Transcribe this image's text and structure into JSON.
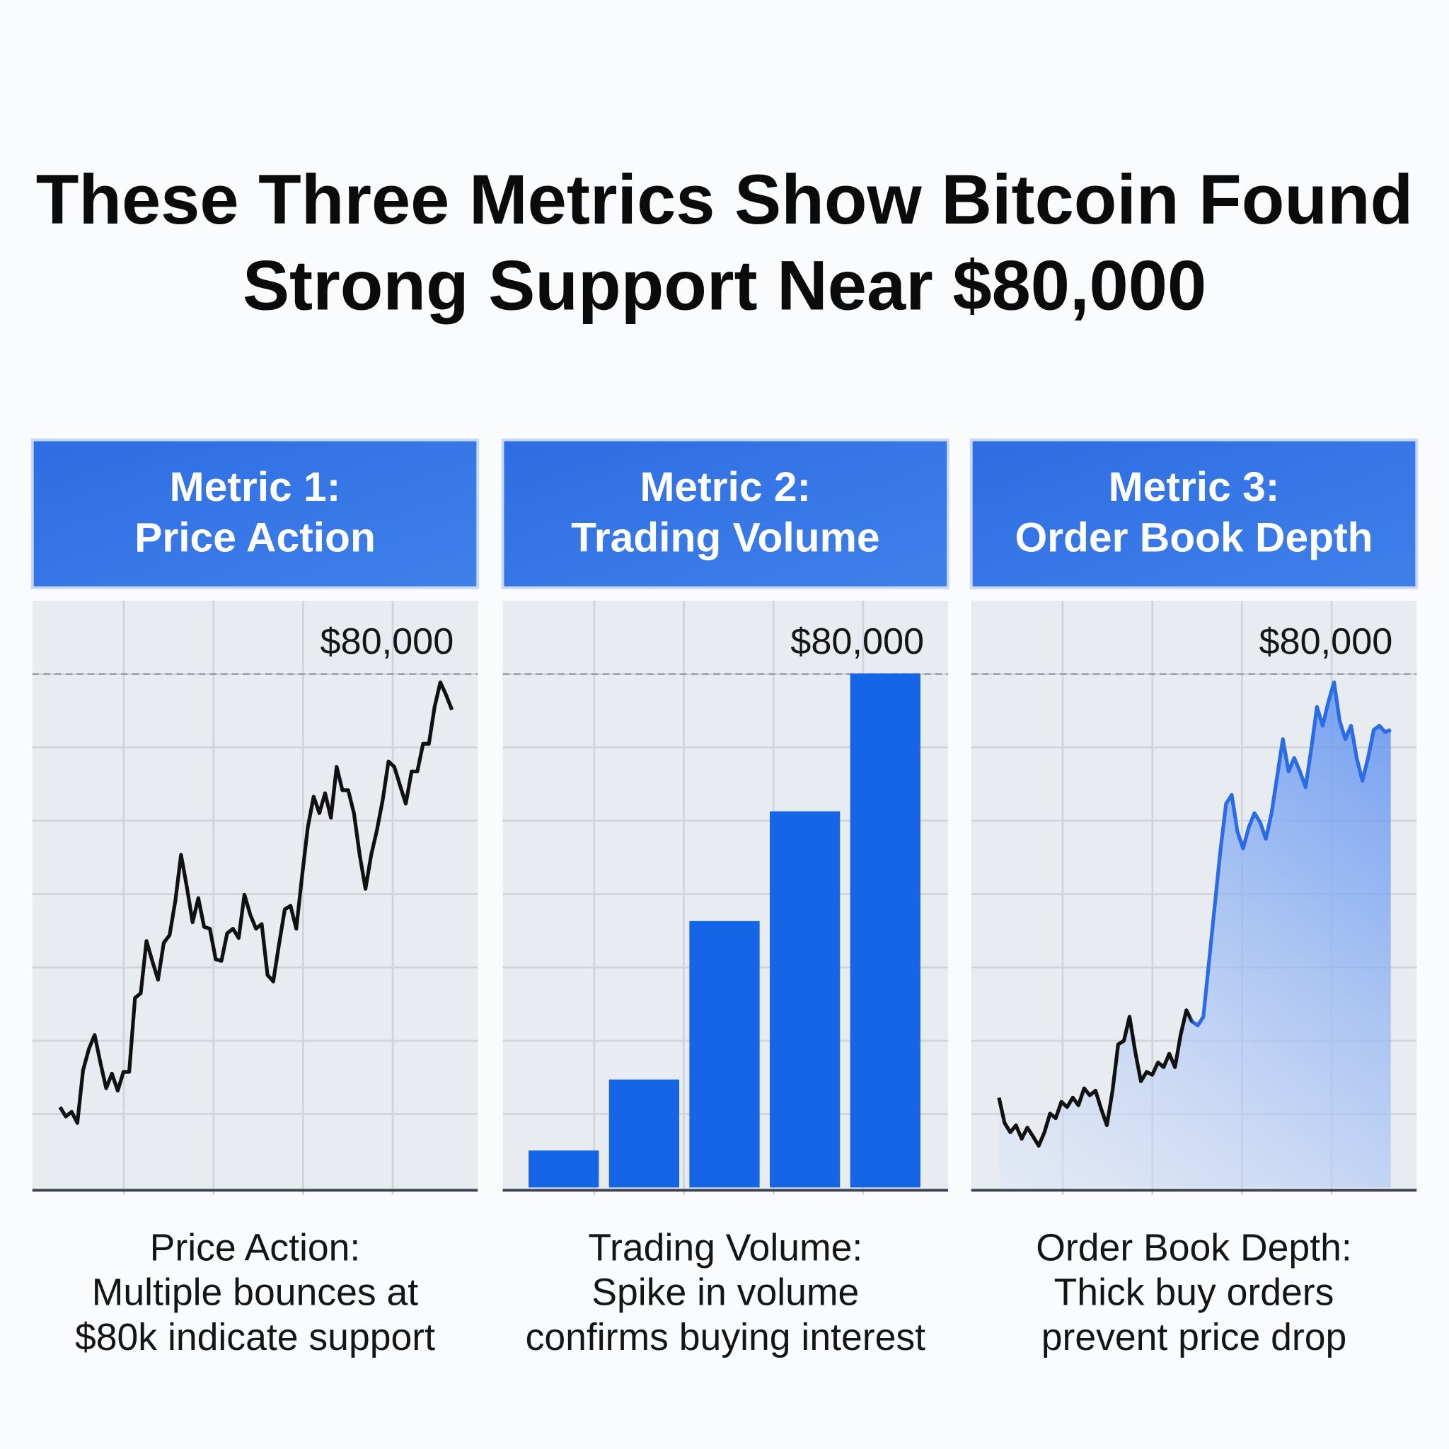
{
  "header": {
    "title": [
      "These Three Metrics Show Bitcoin Found",
      "Strong Support Near $80,000"
    ]
  },
  "chart_data": [
    {
      "type": "line",
      "title": "Metric 1:",
      "subtitle": "Price Action",
      "color": "#111111",
      "ylim": [
        0,
        100
      ],
      "ygrid": [
        12.5,
        25,
        37.5,
        50,
        62.5,
        75,
        87.5
      ],
      "reference_line": {
        "value": 87.5,
        "label": "$80,000"
      },
      "values": [
        13.7,
        12.1,
        12.9,
        11.0,
        20.0,
        23.6,
        26.0,
        21.3,
        16.9,
        19.4,
        16.5,
        19.7,
        19.7,
        32.3,
        33.1,
        42.0,
        38.6,
        35.4,
        41.7,
        43.0,
        48.8,
        56.7,
        51.2,
        45.2,
        49.3,
        44.4,
        44.1,
        38.9,
        38.6,
        43.3,
        44.1,
        42.5,
        49.9,
        46.5,
        44.1,
        44.9,
        36.2,
        35.1,
        41.4,
        47.4,
        48.0,
        44.1,
        53.1,
        61.4,
        66.6,
        63.8,
        67.2,
        63.0,
        71.7,
        67.7,
        67.7,
        63.8,
        56.7,
        50.9,
        56.7,
        60.9,
        66.1,
        72.6,
        71.7,
        68.5,
        65.4,
        70.9,
        70.9,
        75.6,
        75.6,
        81.9,
        86.1,
        83.9,
        81.4
      ],
      "caption": [
        "Price Action:",
        "Multiple bounces at",
        "$80k indicate support"
      ]
    },
    {
      "type": "bar",
      "title": "Metric 2:",
      "subtitle": "Trading Volume",
      "color": "#1565e6",
      "ylim": [
        0,
        100
      ],
      "ygrid": [
        12.5,
        25,
        37.5,
        50,
        62.5,
        75,
        87.5
      ],
      "reference_line": {
        "value": 87.5,
        "label": "$80,000"
      },
      "values": [
        6.3,
        18.4,
        45.4,
        64.1,
        87.6
      ],
      "caption": [
        "Trading Volume:",
        "Spike in volume",
        "confirms buying interest"
      ]
    },
    {
      "type": "area",
      "title": "Metric 3:",
      "subtitle": "Order Book Depth",
      "color": "#2a6be6",
      "ylim": [
        0,
        100
      ],
      "ygrid": [
        12.5,
        25,
        37.5,
        50,
        62.5,
        75,
        87.5
      ],
      "reference_line": {
        "value": 87.5,
        "label": "$80,000"
      },
      "values": [
        15.3,
        11.0,
        9.4,
        10.6,
        8.3,
        10.2,
        8.7,
        7.1,
        9.4,
        12.6,
        11.8,
        14.6,
        13.7,
        15.3,
        14.0,
        16.9,
        15.7,
        16.5,
        13.4,
        10.6,
        16.5,
        24.4,
        25.0,
        29.1,
        23.1,
        18.1,
        19.7,
        19.2,
        21.3,
        20.5,
        22.8,
        20.5,
        26.0,
        30.2,
        28.3,
        27.6,
        29.1,
        38.6,
        48.0,
        57.5,
        65.4,
        66.9,
        60.6,
        57.8,
        61.4,
        63.8,
        62.2,
        59.4,
        63.8,
        70.1,
        76.4,
        70.9,
        73.2,
        70.9,
        68.2,
        74.8,
        81.9,
        78.7,
        82.7,
        86.1,
        79.5,
        76.4,
        78.7,
        73.2,
        69.3,
        73.2,
        78.0,
        78.7,
        77.6,
        78.0
      ],
      "caption": [
        "Order Book Depth:",
        "Thick buy orders",
        "prevent price drop"
      ]
    }
  ]
}
